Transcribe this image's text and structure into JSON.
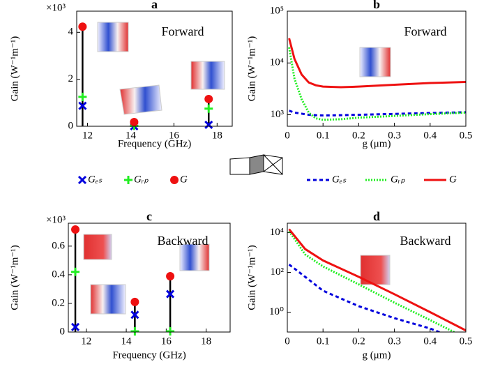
{
  "chart_data": [
    {
      "type": "stem",
      "title": "a",
      "xlabel": "Frequency (GHz)",
      "ylabel": "Gain (W⁻¹m⁻¹)",
      "annotations": [
        "×10³",
        "Forward"
      ],
      "x": [
        11.77,
        14.16,
        17.61
      ],
      "xlim": [
        11.5,
        18.7
      ],
      "xticks": [
        12,
        14,
        16,
        18
      ],
      "ylim": [
        0,
        4.9
      ],
      "yticks": [
        0,
        2,
        4
      ],
      "legend": "below",
      "series": [
        {
          "name": "Gₑₛ",
          "color": "#0000dd",
          "marker": "x",
          "values": [
            0.87,
            0.0,
            0.06
          ]
        },
        {
          "name": "Gᵣₚ",
          "color": "#22ee22",
          "marker": "+",
          "values": [
            1.25,
            0.02,
            0.75
          ]
        },
        {
          "name": "G",
          "color": "#ee1111",
          "marker": "o",
          "values": [
            4.24,
            0.18,
            1.16
          ]
        }
      ]
    },
    {
      "type": "line",
      "title": "b",
      "xlabel": "g (μm)",
      "ylabel": "Gain (W⁻¹m⁻¹)",
      "annotations": [
        "Forward"
      ],
      "ylog": true,
      "x": [
        0.005,
        0.02,
        0.04,
        0.06,
        0.08,
        0.1,
        0.15,
        0.2,
        0.3,
        0.4,
        0.5
      ],
      "xlim": [
        0,
        0.5
      ],
      "xticks": [
        0,
        0.1,
        0.2,
        0.3,
        0.4,
        0.5
      ],
      "ylim": [
        600,
        100000
      ],
      "yticks": [
        {
          "value": 1000,
          "label": "10³"
        },
        {
          "value": 10000,
          "label": "10⁴"
        },
        {
          "value": 100000,
          "label": "10⁵"
        }
      ],
      "legend": "below",
      "series": [
        {
          "name": "Gₑₛ",
          "color": "#0000dd",
          "dash": "dashed",
          "values": [
            1200,
            1100,
            1050,
            1000,
            980,
            970,
            980,
            1000,
            1040,
            1080,
            1120
          ]
        },
        {
          "name": "Gᵣₚ",
          "color": "#22ee22",
          "dash": "dotted",
          "values": [
            20000,
            5000,
            2000,
            1100,
            850,
            800,
            820,
            880,
            950,
            1030,
            1100
          ]
        },
        {
          "name": "G",
          "color": "#ee1111",
          "dash": "solid",
          "values": [
            30000,
            12000,
            6000,
            4200,
            3700,
            3500,
            3400,
            3500,
            3800,
            4100,
            4300
          ]
        }
      ]
    },
    {
      "type": "stem",
      "title": "c",
      "xlabel": "Frequency (GHz)",
      "ylabel": "Gain (W⁻¹m⁻¹)",
      "annotations": [
        "×10³",
        "Backward"
      ],
      "x": [
        11.45,
        14.43,
        16.2
      ],
      "xlim": [
        11.1,
        19.2
      ],
      "xticks": [
        12,
        14,
        16,
        18
      ],
      "ylim": [
        0,
        0.76
      ],
      "yticks": [
        0,
        0.2,
        0.4,
        0.6
      ],
      "series": [
        {
          "color": "#0000dd",
          "marker": "x",
          "values": [
            0.035,
            0.12,
            0.265
          ]
        },
        {
          "color": "#22ee22",
          "marker": "+",
          "values": [
            0.42,
            0.005,
            0.005
          ]
        },
        {
          "color": "#ee1111",
          "marker": "o",
          "values": [
            0.716,
            0.21,
            0.39
          ]
        }
      ]
    },
    {
      "type": "line",
      "title": "d",
      "xlabel": "g (μm)",
      "ylabel": "Gain (W⁻¹m⁻¹)",
      "annotations": [
        "Backward"
      ],
      "ylog": true,
      "x": [
        0.005,
        0.05,
        0.1,
        0.2,
        0.3,
        0.4,
        0.5
      ],
      "xlim": [
        0,
        0.5
      ],
      "xticks": [
        0,
        0.1,
        0.2,
        0.3,
        0.4,
        0.5
      ],
      "ylim": [
        0.1,
        30000
      ],
      "yticks": [
        {
          "value": 1,
          "label": "10⁰"
        },
        {
          "value": 100,
          "label": "10²"
        },
        {
          "value": 10000,
          "label": "10⁴"
        }
      ],
      "series": [
        {
          "color": "#0000dd",
          "dash": "dashed",
          "values": [
            250,
            60,
            12,
            2,
            0.5,
            0.15,
            0.03
          ]
        },
        {
          "color": "#22ee22",
          "dash": "dotted",
          "values": [
            12000,
            800,
            200,
            25,
            3,
            0.4,
            0.05
          ]
        },
        {
          "color": "#ee1111",
          "dash": "solid",
          "values": [
            15000,
            1500,
            400,
            60,
            8,
            1,
            0.12
          ]
        }
      ]
    }
  ]
}
